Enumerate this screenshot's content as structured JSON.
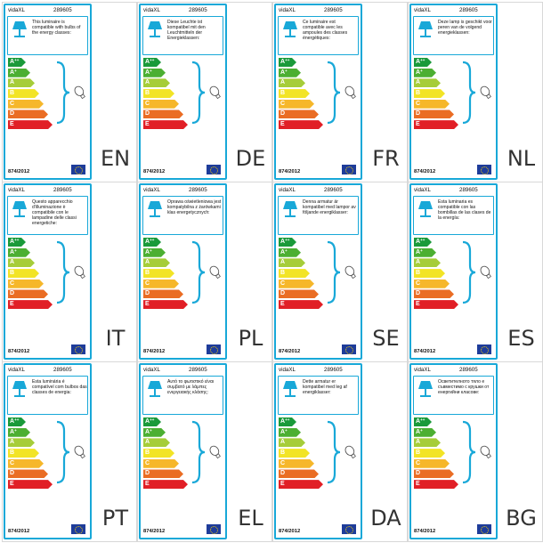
{
  "classes": [
    {
      "letter": "A",
      "sup": "++",
      "color": "#1a9a3a"
    },
    {
      "letter": "A",
      "sup": "+",
      "color": "#4caf32"
    },
    {
      "letter": "A",
      "sup": "",
      "color": "#a6cd39"
    },
    {
      "letter": "B",
      "sup": "",
      "color": "#f2e426"
    },
    {
      "letter": "C",
      "sup": "",
      "color": "#f6b72a"
    },
    {
      "letter": "D",
      "sup": "",
      "color": "#ea6d24"
    },
    {
      "letter": "E",
      "sup": "",
      "color": "#e11f26"
    }
  ],
  "labels": [
    {
      "brand": "vidaXL",
      "code": "289605",
      "desc": "This luminaire is compatible with bulbs of the energy classes:",
      "regulation": "874/2012",
      "lang": "EN"
    },
    {
      "brand": "vidaXL",
      "code": "289605",
      "desc": "Diese Leuchte ist kompatibel mit den Leuchtmitteln der Energieklassen:",
      "regulation": "874/2012",
      "lang": "DE"
    },
    {
      "brand": "vidaXL",
      "code": "289605",
      "desc": "Ce luminaire est compatible avec les ampoules des classes énergétiques:",
      "regulation": "874/2012",
      "lang": "FR"
    },
    {
      "brand": "vidaXL",
      "code": "289605",
      "desc": "Deze lamp is geschikt voor peren van de volgend energieklassen:",
      "regulation": "874/2012",
      "lang": "NL"
    },
    {
      "brand": "vidaXL",
      "code": "289605",
      "desc": "Questo apparecchio d'illuminazione è compatibile con le lampadine delle classi energetiche:",
      "regulation": "874/2012",
      "lang": "IT"
    },
    {
      "brand": "vidaXL",
      "code": "289605",
      "desc": "Oprawa oświetleniowa jest kompatybilna z żarówkami klas energetycznych:",
      "regulation": "874/2012",
      "lang": "PL"
    },
    {
      "brand": "vidaXL",
      "code": "289605",
      "desc": "Denna armatur är kompatibel med lampor av följande energiklasser:",
      "regulation": "874/2012",
      "lang": "SE"
    },
    {
      "brand": "vidaXL",
      "code": "289605",
      "desc": "Esta luminaria es compatible con las bombillas de las clases de la energía:",
      "regulation": "874/2012",
      "lang": "ES"
    },
    {
      "brand": "vidaXL",
      "code": "289605",
      "desc": "Esta luminária é compatível com bulbos das classes de energia:",
      "regulation": "874/2012",
      "lang": "PT"
    },
    {
      "brand": "vidaXL",
      "code": "289605",
      "desc": "Αυτό το φωτιστικό είναι συμβατό με λάμπες ενεργειακής κλάσης:",
      "regulation": "874/2012",
      "lang": "EL"
    },
    {
      "brand": "vidaXL",
      "code": "289605",
      "desc": "Dette armatur er kompatibel med lеg af energiklasser:",
      "regulation": "874/2012",
      "lang": "DA"
    },
    {
      "brand": "vidaXL",
      "code": "289605",
      "desc": "Осветителното тяло е съвместимо с крушки от енергийни класове:",
      "regulation": "874/2012",
      "lang": "BG"
    }
  ],
  "colors": {
    "border": "#18a8d8",
    "icon": "#18a8d8"
  },
  "icons": {
    "lamp": "table-lamp-icon",
    "bulb": "light-bulb-icon",
    "flag": "eu-flag-icon"
  }
}
